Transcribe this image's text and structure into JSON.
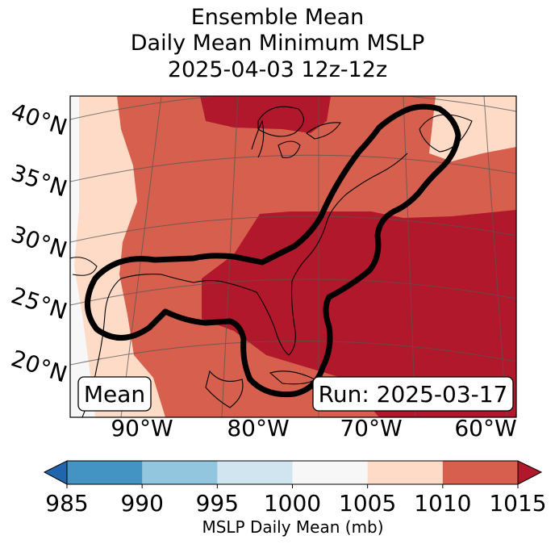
{
  "title": {
    "line1": "Ensemble Mean",
    "line2": "Daily Mean Minimum MSLP",
    "line3": "2025-04-03 12z-12z"
  },
  "map": {
    "latitude_labels": [
      "40°N",
      "35°N",
      "30°N",
      "25°N",
      "20°N"
    ],
    "longitude_labels": [
      "90°W",
      "80°W",
      "70°W",
      "60°W"
    ],
    "mean_label": "Mean",
    "run_label": "Run: 2025-03-17"
  },
  "colorbar": {
    "label": "MSLP Daily Mean (mb)",
    "ticks": [
      "985",
      "990",
      "995",
      "1000",
      "1005",
      "1010",
      "1015"
    ],
    "colors": [
      "#4393c3",
      "#92c5de",
      "#d1e5f0",
      "#f7f7f7",
      "#fddbc7",
      "#d6604d",
      "#b2182b"
    ],
    "under_color": "#2166ac",
    "over_color": "#b2182b"
  }
}
